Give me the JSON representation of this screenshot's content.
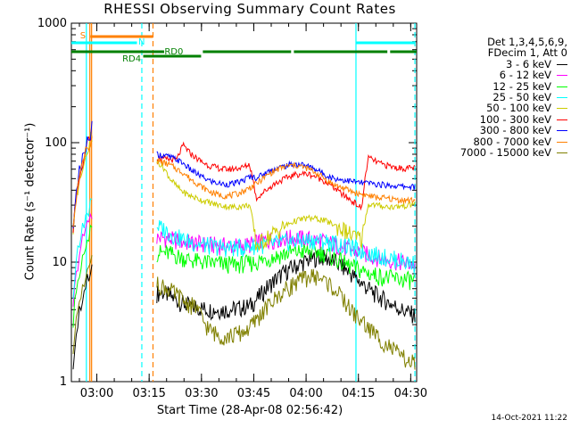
{
  "chart_data": {
    "type": "line",
    "title": "RHESSI Observing Summary Count Rates",
    "xlabel": "Start Time (28-Apr-08 02:56:42)",
    "ylabel": "Count Rate (s⁻¹ detector⁻¹)",
    "yscale": "log",
    "ylim": [
      1,
      1000
    ],
    "xlim_min": [
      -4,
      95
    ],
    "y_ticks": [
      {
        "value": 1,
        "label": "1"
      },
      {
        "value": 10,
        "label": "10"
      },
      {
        "value": 100,
        "label": "100"
      },
      {
        "value": 1000,
        "label": "1000"
      }
    ],
    "x_ticks": [
      {
        "value": 3.3,
        "label": "03:00"
      },
      {
        "value": 18.3,
        "label": "03:15"
      },
      {
        "value": 33.3,
        "label": "03:30"
      },
      {
        "value": 48.3,
        "label": "03:45"
      },
      {
        "value": 63.3,
        "label": "04:00"
      },
      {
        "value": 78.3,
        "label": "04:15"
      },
      {
        "value": 93.3,
        "label": "04:30"
      }
    ],
    "legend_header": [
      "Det 1,3,4,5,6,9,",
      "FDecim 1, Att 0"
    ],
    "series": [
      {
        "name": "3 - 6 keV",
        "color": "#000000",
        "values": [
          5.5,
          5.6,
          5.2,
          4.8,
          4.5,
          4.3,
          4.2,
          4.1,
          4.0,
          4.0,
          4.0,
          4.0,
          4.1,
          4.2,
          4.3,
          4.8,
          5.6,
          6.4,
          7.2,
          8.0,
          8.7,
          9.3,
          9.8,
          10.5,
          10.9,
          11.0,
          10.6,
          10.0,
          9.2,
          8.3,
          7.4,
          6.6,
          6.0,
          5.4,
          5.0,
          4.6,
          4.3,
          4.0,
          3.8,
          3.6
        ]
      },
      {
        "name": "6 - 12 keV",
        "color": "#ff00ff",
        "values": [
          16.0,
          16.0,
          15.6,
          15.2,
          14.8,
          14.6,
          14.4,
          14.2,
          14.0,
          13.9,
          13.8,
          13.7,
          13.7,
          13.8,
          14.0,
          14.6,
          15.0,
          15.3,
          15.6,
          15.9,
          16.0,
          16.0,
          15.8,
          15.6,
          15.3,
          15.0,
          14.5,
          14.0,
          13.4,
          12.9,
          12.4,
          12.0,
          11.5,
          11.1,
          10.8,
          10.5,
          10.2,
          10.0,
          9.8,
          9.6
        ]
      },
      {
        "name": "12 - 25 keV",
        "color": "#00ff00",
        "values": [
          12.0,
          12.0,
          11.8,
          11.3,
          10.9,
          10.5,
          10.2,
          10.0,
          9.9,
          9.8,
          9.7,
          9.6,
          9.6,
          9.7,
          9.8,
          10.0,
          10.4,
          10.8,
          11.2,
          11.6,
          12.0,
          12.2,
          12.3,
          12.3,
          12.2,
          12.0,
          11.4,
          10.8,
          10.0,
          9.4,
          8.9,
          8.5,
          8.1,
          7.8,
          7.6,
          7.4,
          7.3,
          7.2,
          7.1,
          7.0
        ]
      },
      {
        "name": "25 - 50 keV",
        "color": "#00ffff",
        "values": [
          20.0,
          19.0,
          17.5,
          16.3,
          15.5,
          14.9,
          14.4,
          14.0,
          13.7,
          13.5,
          13.3,
          13.2,
          13.2,
          13.3,
          13.5,
          13.9,
          14.0,
          14.2,
          14.4,
          14.6,
          14.8,
          15.0,
          15.1,
          15.2,
          15.2,
          15.1,
          14.8,
          14.4,
          13.9,
          13.4,
          12.9,
          12.4,
          12.0,
          11.6,
          11.2,
          10.9,
          10.6,
          10.3,
          10.0,
          9.7
        ]
      },
      {
        "name": "50 - 100 keV",
        "color": "#cccc00",
        "values": [
          70.0,
          62.0,
          50.0,
          43.0,
          38.5,
          36.0,
          34.3,
          32.7,
          31.4,
          30.3,
          29.6,
          29.0,
          29.0,
          29.4,
          30.2,
          13.5,
          15.0,
          16.5,
          18.0,
          19.5,
          21.0,
          22.2,
          23.0,
          23.3,
          23.1,
          22.6,
          21.5,
          20.3,
          19.0,
          17.5,
          16.2,
          15.5,
          30.5,
          30.0,
          29.5,
          29.0,
          29.0,
          29.5,
          30.0,
          31.0
        ]
      },
      {
        "name": "100 - 300 keV",
        "color": "#ff0000",
        "values": [
          75.0,
          73.0,
          72.0,
          72.0,
          95.0,
          82.0,
          74.0,
          68.0,
          64.0,
          62.0,
          60.0,
          60.0,
          61.0,
          62.0,
          66.0,
          34.0,
          38.0,
          42.0,
          46.0,
          49.0,
          52.0,
          54.0,
          55.0,
          54.5,
          52.0,
          49.0,
          45.0,
          41.0,
          37.0,
          34.0,
          31.0,
          28.0,
          75.0,
          70.0,
          66.0,
          64.0,
          62.0,
          61.0,
          61.0,
          62.0
        ]
      },
      {
        "name": "300 - 800 keV",
        "color": "#0000ff",
        "values": [
          80.0,
          78.0,
          76.0,
          72.0,
          67.0,
          60.0,
          55.0,
          51.0,
          48.0,
          46.0,
          45.0,
          45.0,
          46.0,
          48.0,
          52.0,
          51.0,
          54.0,
          58.0,
          61.0,
          63.0,
          65.0,
          66.0,
          65.5,
          63.0,
          60.0,
          56.0,
          52.0,
          50.0,
          49.0,
          48.0,
          47.0,
          46.0,
          46.0,
          45.0,
          44.5,
          44.0,
          43.5,
          43.0,
          43.0,
          42.5
        ]
      },
      {
        "name": "800 - 7000 keV",
        "color": "#ff8000",
        "values": [
          70.0,
          68.0,
          65.0,
          60.0,
          56.0,
          50.0,
          46.0,
          42.0,
          39.0,
          37.0,
          36.0,
          36.0,
          37.0,
          39.0,
          42.0,
          45.0,
          50.0,
          55.0,
          59.0,
          62.0,
          64.0,
          64.5,
          63.0,
          60.0,
          56.0,
          52.0,
          47.0,
          44.0,
          42.0,
          40.0,
          38.0,
          37.0,
          36.0,
          35.0,
          34.5,
          34.0,
          33.5,
          33.0,
          33.0,
          33.0
        ]
      },
      {
        "name": "7000 - 15000 keV",
        "color": "#808000",
        "values": [
          6.5,
          6.3,
          5.8,
          5.3,
          4.8,
          4.4,
          4.2,
          3.2,
          2.7,
          2.5,
          2.4,
          2.4,
          2.5,
          2.6,
          2.8,
          3.3,
          3.8,
          4.4,
          5.0,
          5.6,
          6.2,
          6.8,
          7.2,
          7.6,
          7.6,
          7.2,
          6.6,
          5.8,
          5.0,
          4.2,
          3.6,
          3.2,
          2.8,
          2.5,
          2.2,
          2.0,
          1.8,
          1.6,
          1.5,
          1.4
        ]
      }
    ],
    "state_bars": [
      {
        "label": "S",
        "color": "#ff8000"
      },
      {
        "label": "N",
        "color": "#00ffff"
      },
      {
        "label": "RD0",
        "color": "#008000"
      },
      {
        "label": "RD4",
        "color": "#008000"
      }
    ]
  },
  "timestamp": "14-Oct-2021 11:22"
}
